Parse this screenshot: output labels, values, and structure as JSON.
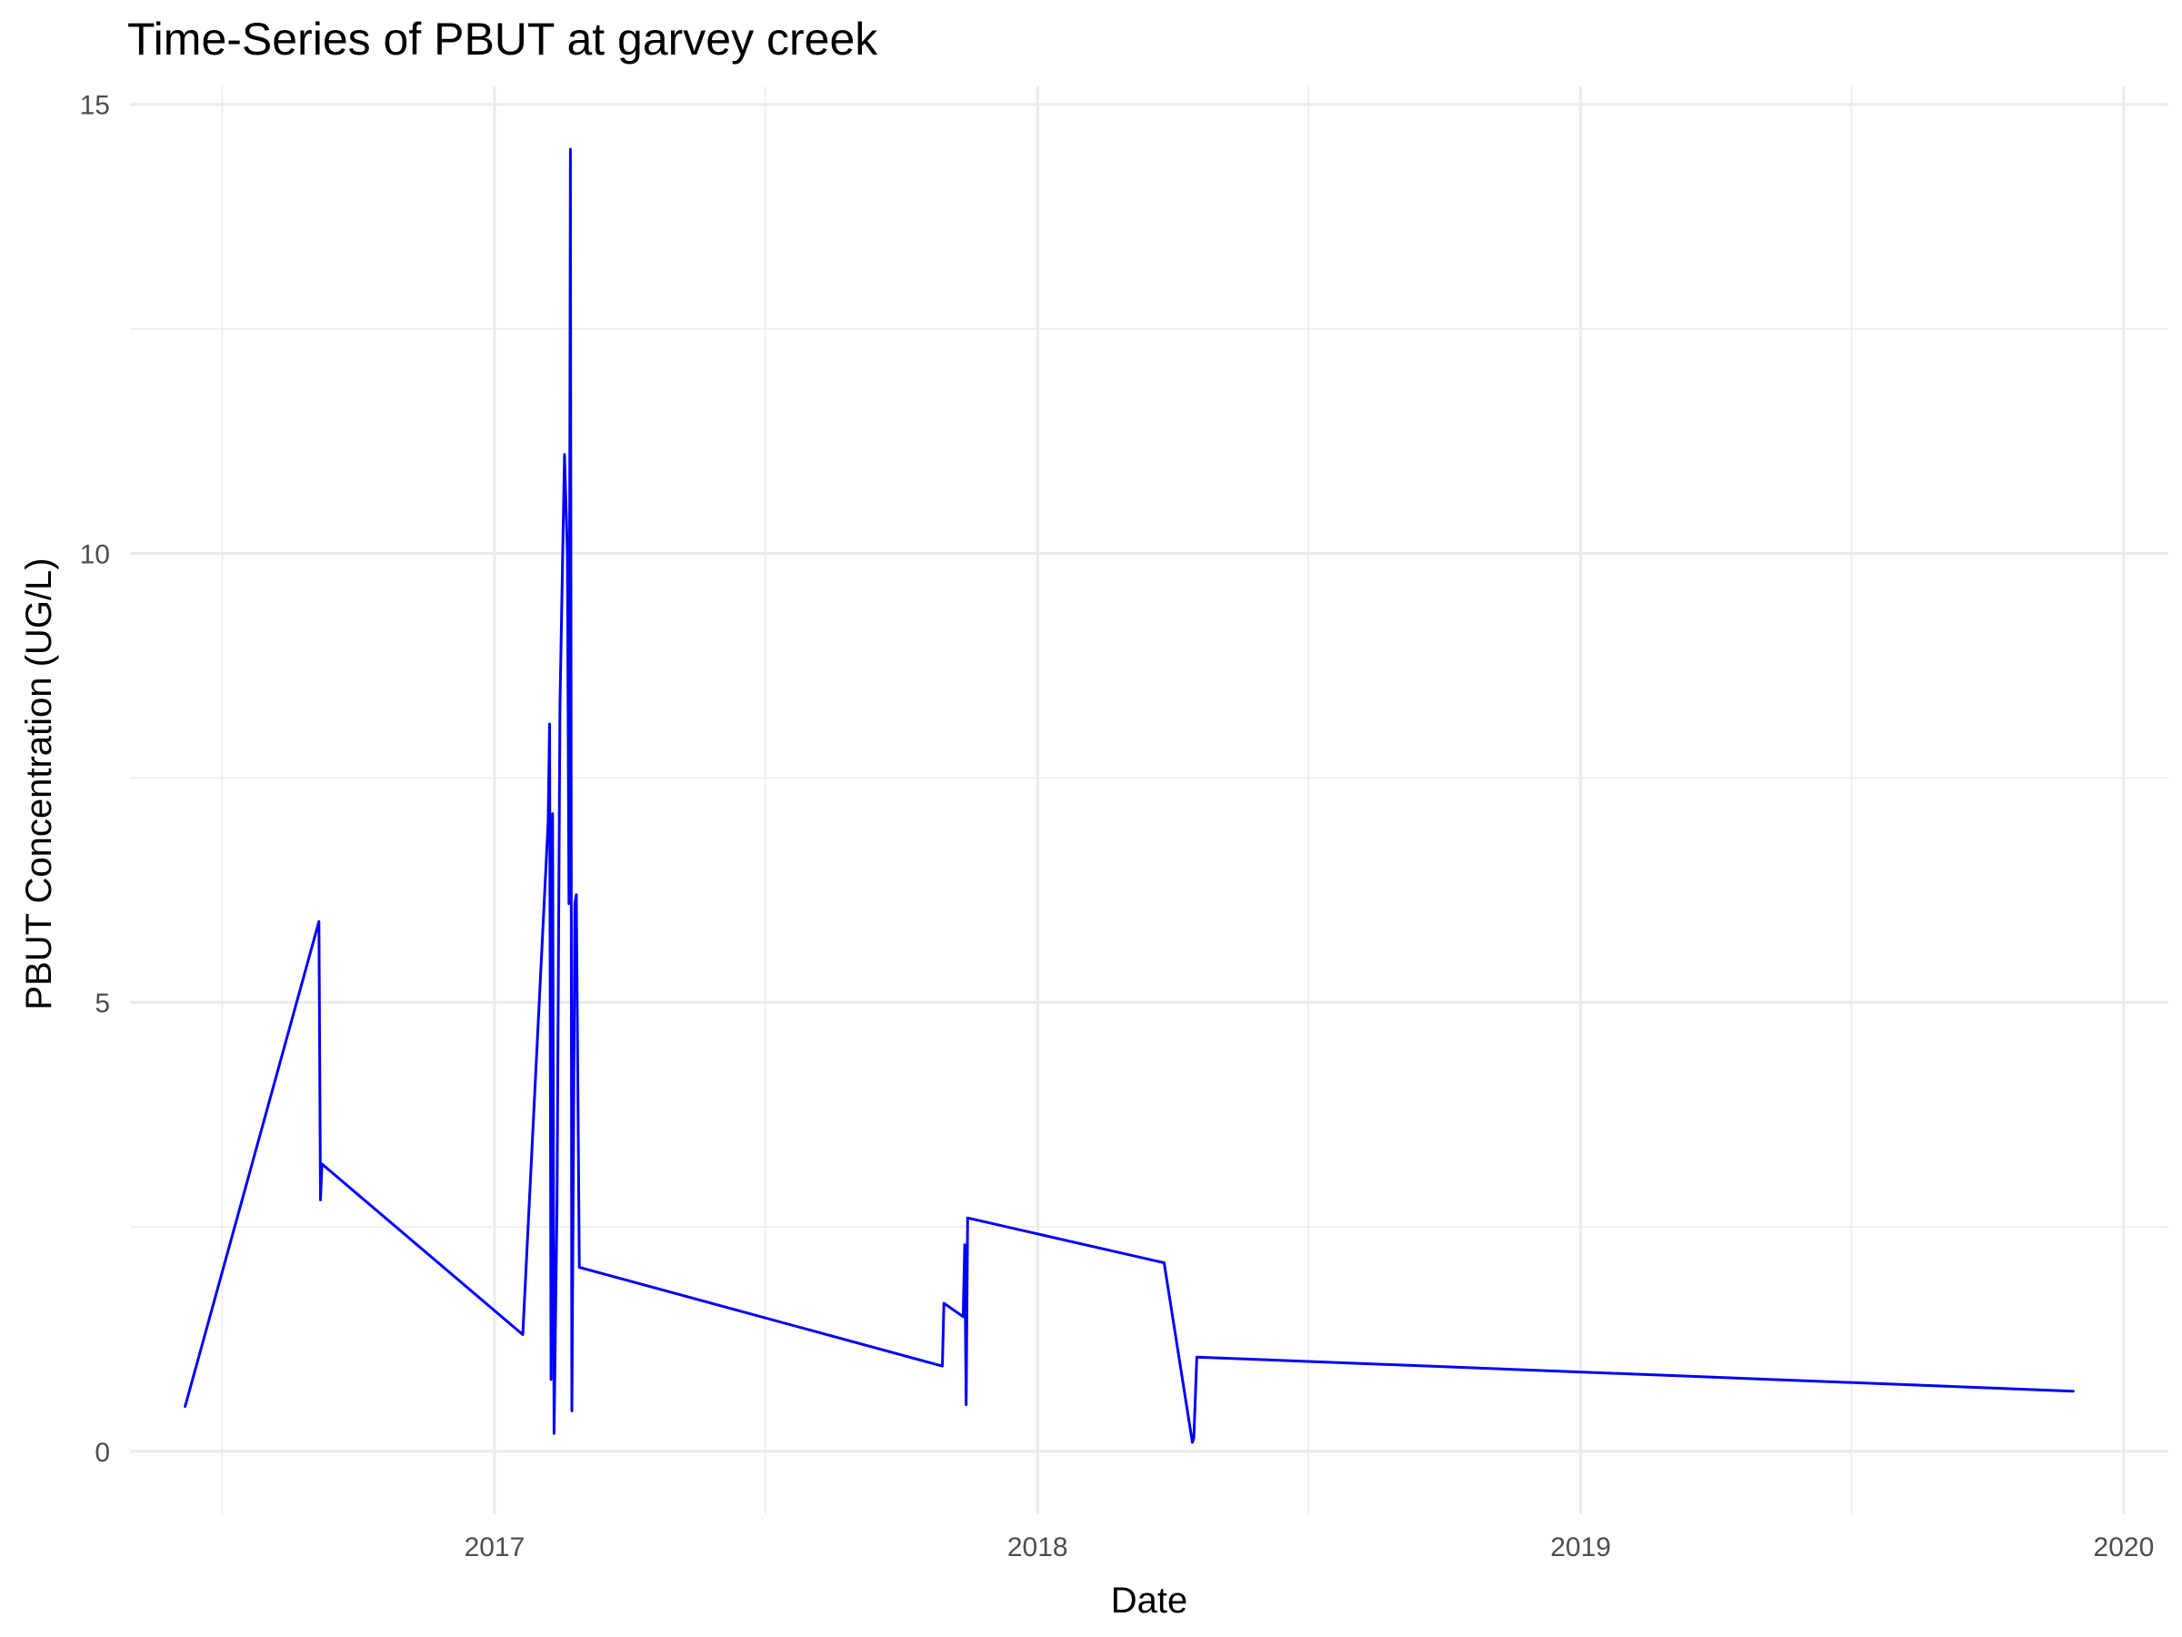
{
  "chart_data": {
    "type": "line",
    "title": "Time-Series of PBUT at garvey creek",
    "xlabel": "Date",
    "ylabel": "PBUT Concentration (UG/L)",
    "xlim": [
      "2016-05-01",
      "2020-01-31"
    ],
    "ylim": [
      -0.7,
      15.2
    ],
    "x_ticks": [
      "2017-01-01",
      "2018-01-01",
      "2019-01-01",
      "2020-01-01"
    ],
    "x_tick_labels": [
      "2017",
      "2018",
      "2019",
      "2020"
    ],
    "y_ticks": [
      0,
      5,
      10,
      15
    ],
    "y_tick_labels": [
      "0",
      "5",
      "10",
      "15"
    ],
    "grid": true,
    "legend": "none",
    "series": [
      {
        "color": "#0000ff",
        "x": [
          "2016-06-07",
          "2016-09-05",
          "2016-09-06",
          "2016-09-07",
          "2017-01-20",
          "2017-02-06",
          "2017-02-07",
          "2017-02-08",
          "2017-02-09",
          "2017-02-10",
          "2017-02-12",
          "2017-02-14",
          "2017-02-17",
          "2017-02-19",
          "2017-02-20",
          "2017-02-21",
          "2017-02-22",
          "2017-02-24",
          "2017-02-25",
          "2017-02-27",
          "2017-10-29",
          "2017-10-30",
          "2017-11-12",
          "2017-11-13",
          "2017-11-14",
          "2017-11-15",
          "2018-03-27",
          "2018-04-15",
          "2018-04-16",
          "2018-04-18",
          "2019-11-28"
        ],
        "y": [
          0.5,
          5.9,
          2.8,
          3.2,
          1.3,
          7.0,
          8.1,
          0.8,
          7.1,
          0.2,
          2.8,
          8.3,
          11.1,
          10.0,
          6.1,
          14.5,
          0.45,
          6.1,
          6.2,
          2.05,
          0.95,
          1.65,
          1.5,
          2.3,
          0.52,
          2.6,
          2.1,
          0.1,
          0.15,
          1.05,
          0.67
        ]
      }
    ]
  }
}
